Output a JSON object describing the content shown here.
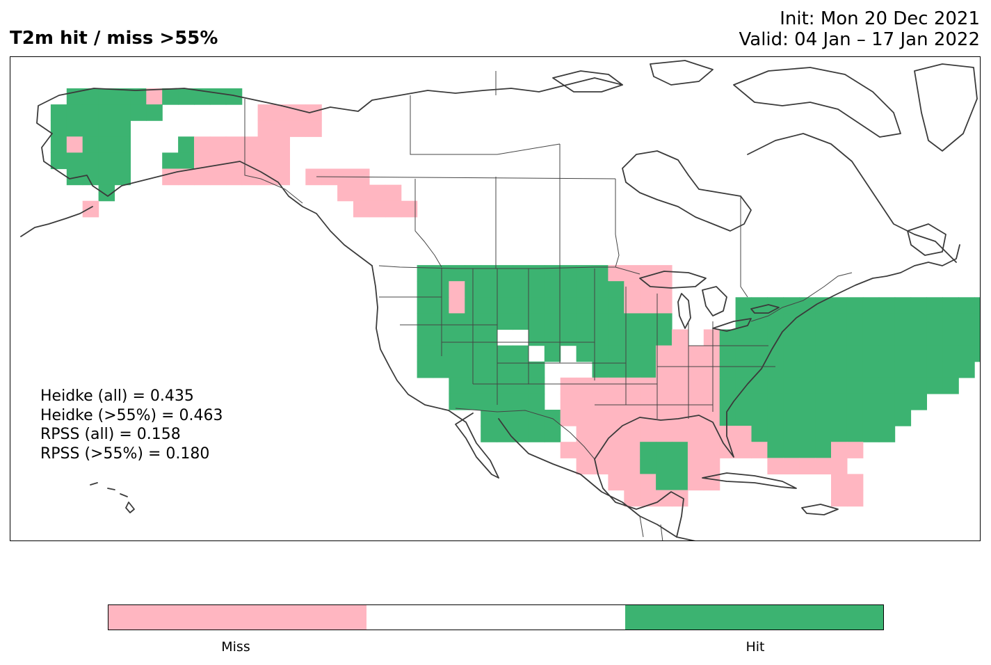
{
  "title_left": "T2m hit / miss  >55%",
  "init_text": "Init: Mon 20 Dec 2021",
  "valid_text": "Valid: 04 Jan – 17 Jan 2022",
  "scores": [
    "Heidke (all) = 0.435",
    "Heidke (>55%) = 0.463",
    "RPSS (all) = 0.158",
    "RPSS (>55%) = 0.180"
  ],
  "colorbar": {
    "categories": [
      {
        "label": "Miss",
        "color": "#FFB6C1"
      },
      {
        "label": "",
        "color": "#FFFFFF"
      },
      {
        "label": "Hit",
        "color": "#3CB371"
      }
    ]
  },
  "colors": {
    "hit": "#3CB371",
    "miss": "#FFB6C1",
    "coast": "#3a3a3a",
    "border": "#444444"
  },
  "map_grid": {
    "legend": "M = miss, H = hit, . = no forecast signal",
    "rows": [
      "..HHHHHMHHHHH...................................................",
      ".HHHHHHH......MMMM..............................................",
      ".HHHHH........MMMM..............................................",
      ".HMHHH...HMMMMMM................................................",
      ".HHHHH..HHMMMMMM................................................",
      "..HHHH..MMMMMMMM.MMMM...........................................",
      "....H..............MMMM.........................................",
      "...M................MMMM........................................",
      "................................................................",
      "................................................................",
      "................................................................",
      "........................HHHHHHHHHHHHMMMM........................",
      "........................HHMHHHHHHHHHHMMM.......................",
      "........................HHMHHHHHHHHHHMMM....HHHHHHHHHHHHHHHHHH..",
      "........................HHHHHHHHHHHHHHHH....HHHHHHHHHHHHHHHHH...",
      "........................HHHHH..HHHHHHHHHM.MHHHHHHHHHHHHHHHHHH...",
      "........................HHHHHHH.H.HHHHHMMMMHHHHHHHHHHHHHHHHH....",
      "........................HHHHHHHH...HHHHMMMMHHHHHHHHHHHHHHHH.....",
      "..........................HHHHHH.MMMMMMMMMMHHHHHHHHHHHHHHH......",
      "..........................HHHHHH.MMMMMMMMMMHHHHHHHHHHHHH........",
      "............................HHHHHMMMMMMMMMMHHHHHHHHHHHH.........",
      "............................HHHHH.MMMMMMMMMMMHHHHHHHHH..........",
      ".................................MMMMMHHHMMMMMHHHHMM............",
      "..................................MMMMHHHMM...MMMMM.............",
      "....................................MMMHHMM.......MM............",
      ".....................................MMMM.........MM............"
    ]
  }
}
